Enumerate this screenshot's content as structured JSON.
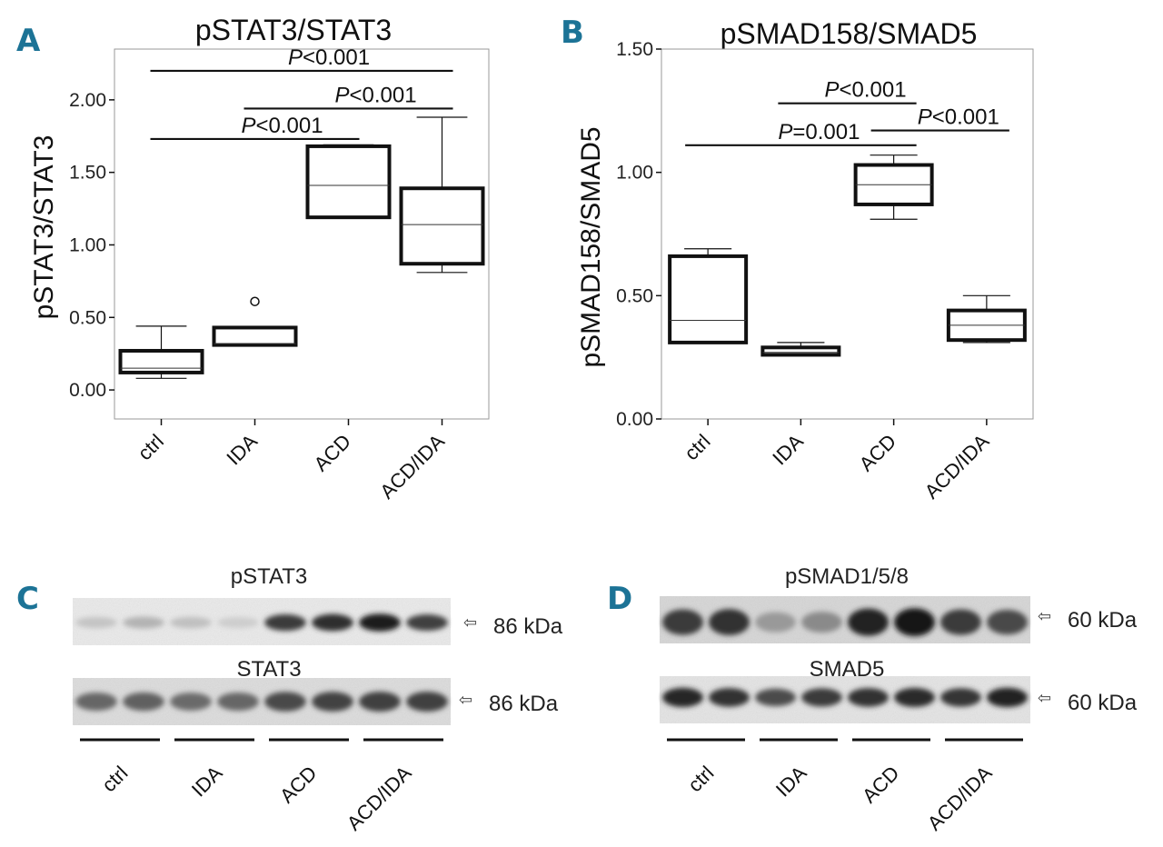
{
  "figure_panels": [
    "A",
    "B",
    "C",
    "D"
  ],
  "chart_data": [
    {
      "panel": "A",
      "type": "boxplot",
      "title": "pSTAT3/STAT3",
      "xlabel": "",
      "ylabel": "pSTAT3/STAT3",
      "ylim": [
        -0.2,
        2.35
      ],
      "yticks": [
        0,
        0.5,
        1.0,
        1.5,
        2.0
      ],
      "ytick_labels": [
        "0.00",
        "0.50",
        "1.00",
        "1.50",
        "2.00"
      ],
      "categories": [
        "ctrl",
        "IDA",
        "ACD",
        "ACD/IDA"
      ],
      "boxes": [
        {
          "category": "ctrl",
          "whisker_low": 0.08,
          "q1": 0.12,
          "median": 0.15,
          "q3": 0.27,
          "whisker_high": 0.44,
          "outliers": []
        },
        {
          "category": "IDA",
          "whisker_low": 0.31,
          "q1": 0.31,
          "median": 0.32,
          "q3": 0.43,
          "whisker_high": 0.43,
          "outliers": [
            0.61
          ]
        },
        {
          "category": "ACD",
          "whisker_low": 1.19,
          "q1": 1.19,
          "median": 1.41,
          "q3": 1.68,
          "whisker_high": 1.69,
          "outliers": []
        },
        {
          "category": "ACD/IDA",
          "whisker_low": 0.81,
          "q1": 0.87,
          "median": 1.14,
          "q3": 1.39,
          "whisker_high": 1.88,
          "outliers": []
        }
      ],
      "significance": [
        {
          "from": "ctrl",
          "to": "ACD/IDA",
          "y": 2.2,
          "label_italic": "P",
          "label_rest": "<0.001"
        },
        {
          "from": "IDA",
          "to": "ACD/IDA",
          "y": 1.94,
          "label_italic": "P",
          "label_rest": "<0.001"
        },
        {
          "from": "ctrl",
          "to": "ACD",
          "y": 1.73,
          "label_italic": "P",
          "label_rest": "<0.001"
        }
      ]
    },
    {
      "panel": "B",
      "type": "boxplot",
      "title": "pSMAD158/SMAD5",
      "xlabel": "",
      "ylabel": "pSMAD158/SMAD5",
      "ylim": [
        0,
        1.5
      ],
      "yticks": [
        0,
        0.5,
        1.0,
        1.5
      ],
      "ytick_labels": [
        "0.00",
        "0.50",
        "1.00",
        "1.50"
      ],
      "categories": [
        "ctrl",
        "IDA",
        "ACD",
        "ACD/IDA"
      ],
      "boxes": [
        {
          "category": "ctrl",
          "whisker_low": 0.31,
          "q1": 0.31,
          "median": 0.4,
          "q3": 0.66,
          "whisker_high": 0.69,
          "outliers": []
        },
        {
          "category": "IDA",
          "whisker_low": 0.26,
          "q1": 0.26,
          "median": 0.27,
          "q3": 0.29,
          "whisker_high": 0.31,
          "outliers": []
        },
        {
          "category": "ACD",
          "whisker_low": 0.81,
          "q1": 0.87,
          "median": 0.95,
          "q3": 1.03,
          "whisker_high": 1.07,
          "outliers": []
        },
        {
          "category": "ACD/IDA",
          "whisker_low": 0.31,
          "q1": 0.32,
          "median": 0.38,
          "q3": 0.44,
          "whisker_high": 0.5,
          "outliers": []
        }
      ],
      "significance": [
        {
          "from": "IDA",
          "to": "ACD",
          "y": 1.28,
          "label_italic": "P",
          "label_rest": "<0.001"
        },
        {
          "from": "ACD",
          "to": "ACD/IDA",
          "y": 1.17,
          "label_italic": "P",
          "label_rest": "<0.001"
        },
        {
          "from": "ctrl",
          "to": "ACD",
          "y": 1.11,
          "label_italic": "P",
          "label_rest": "=0.001"
        }
      ]
    }
  ],
  "blots": [
    {
      "panel": "C",
      "groups": [
        "ctrl",
        "IDA",
        "ACD",
        "ACD/IDA"
      ],
      "rows": [
        {
          "label": "pSTAT3",
          "size": "86 kDa",
          "lane_intensity": [
            0.18,
            0.26,
            0.2,
            0.14,
            0.82,
            0.88,
            0.96,
            0.8
          ]
        },
        {
          "label": "STAT3",
          "size": "86 kDa",
          "lane_intensity": [
            0.62,
            0.64,
            0.6,
            0.62,
            0.76,
            0.78,
            0.8,
            0.8
          ]
        }
      ]
    },
    {
      "panel": "D",
      "groups": [
        "ctrl",
        "IDA",
        "ACD",
        "ACD/IDA"
      ],
      "rows": [
        {
          "label": "pSMAD1/5/8",
          "size": "60 kDa",
          "lane_intensity": [
            0.82,
            0.86,
            0.38,
            0.45,
            0.94,
            1.0,
            0.82,
            0.75
          ]
        },
        {
          "label": "SMAD5",
          "size": "60 kDa",
          "lane_intensity": [
            0.92,
            0.86,
            0.74,
            0.82,
            0.86,
            0.9,
            0.84,
            0.94
          ]
        }
      ]
    }
  ]
}
